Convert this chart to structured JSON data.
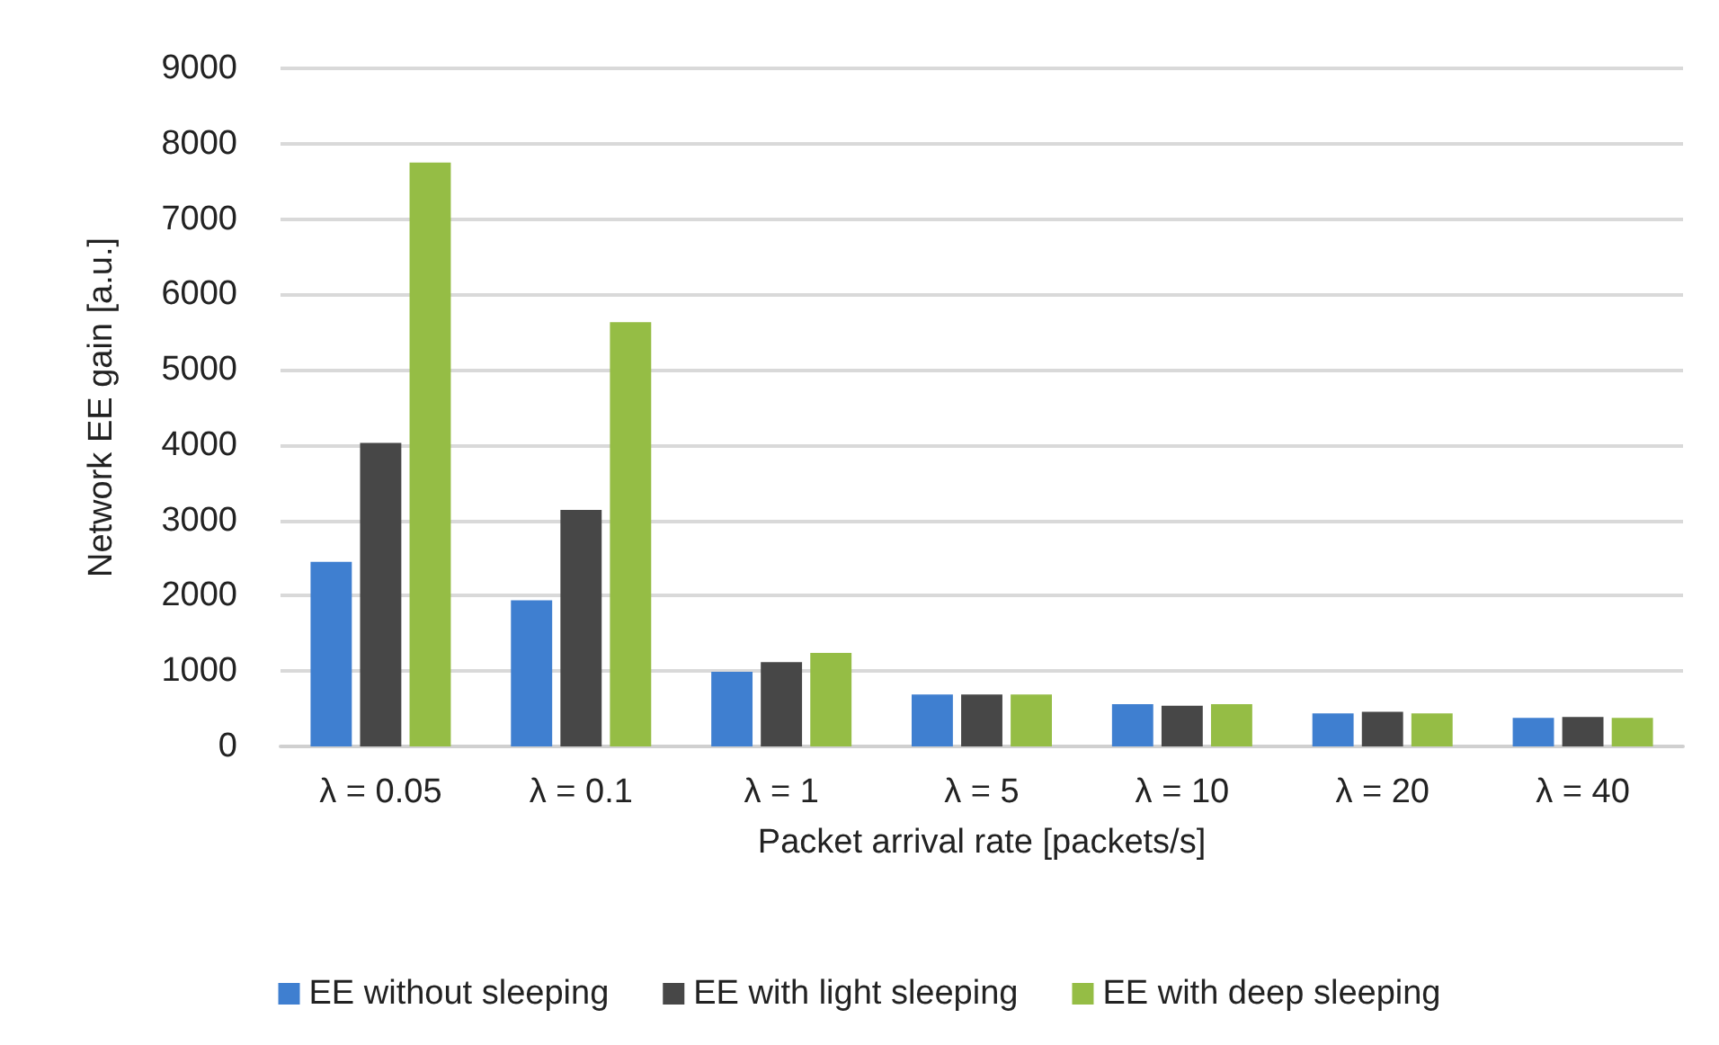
{
  "chart_data": {
    "type": "bar",
    "xlabel": "Packet arrival rate [packets/s]",
    "ylabel": "Network EE gain [a.u.]",
    "categories": [
      "λ = 0.05",
      "λ = 0.1",
      "λ = 1",
      "λ = 5",
      "λ = 10",
      "λ = 20",
      "λ = 40"
    ],
    "series": [
      {
        "name": "EE without sleeping",
        "color": "#3f7fd0",
        "values": [
          2450,
          1940,
          990,
          690,
          560,
          440,
          380
        ]
      },
      {
        "name": "EE with light sleeping",
        "color": "#474747",
        "values": [
          4030,
          3140,
          1120,
          690,
          540,
          460,
          390
        ]
      },
      {
        "name": "EE with deep sleeping",
        "color": "#95bd45",
        "values": [
          7750,
          5630,
          1240,
          690,
          560,
          440,
          380
        ]
      }
    ],
    "ylim": [
      0,
      9000
    ],
    "yticks": [
      0,
      1000,
      2000,
      3000,
      4000,
      5000,
      6000,
      7000,
      8000,
      9000
    ],
    "grid": "y",
    "legend": "bottom"
  }
}
